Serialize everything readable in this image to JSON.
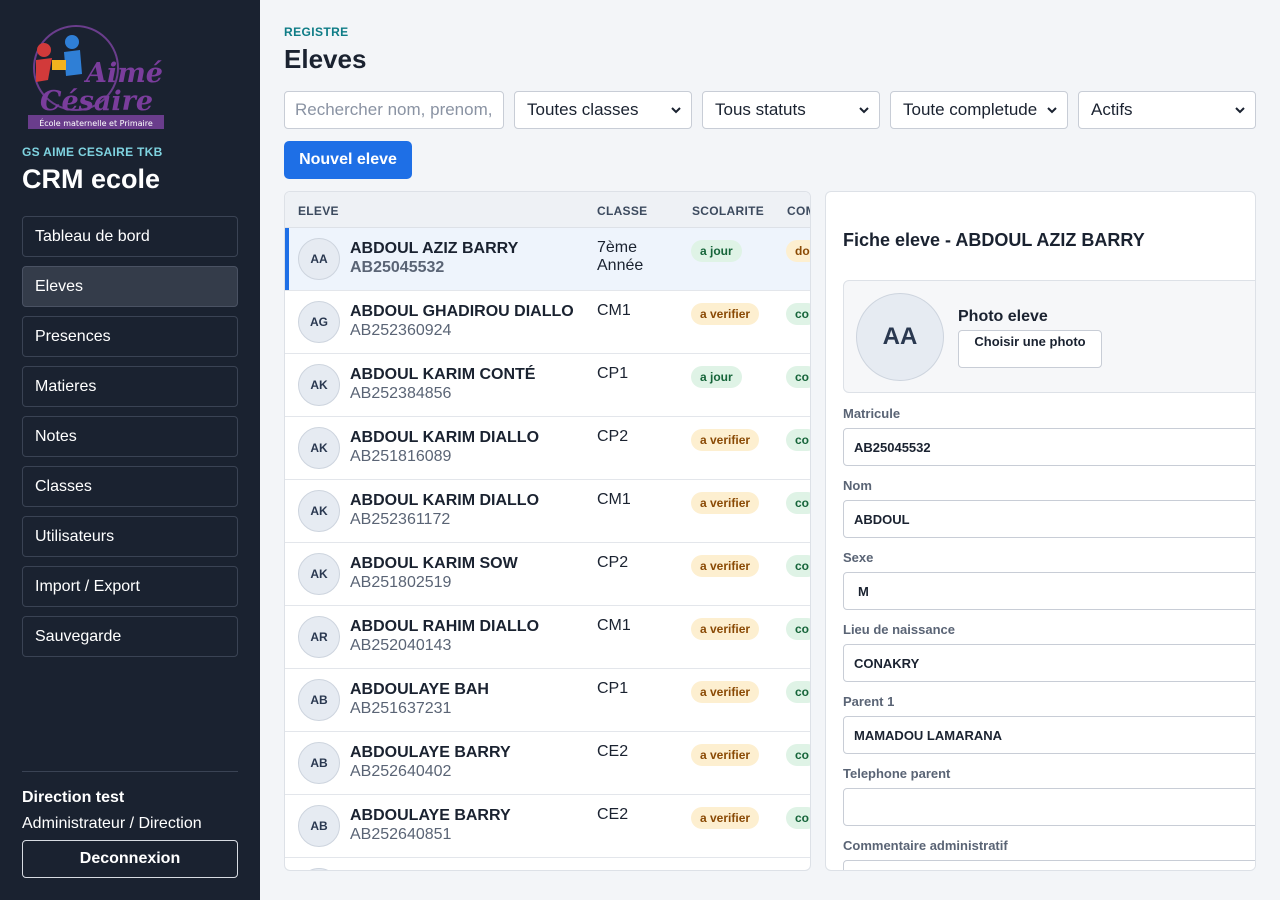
{
  "sidebar": {
    "logo_text": "Aimé Césaire",
    "logo_subtext": "École maternelle et Primaire",
    "school_name": "GS AIME CESAIRE TKB",
    "app_title": "CRM ecole",
    "items": [
      {
        "label": "Tableau de bord"
      },
      {
        "label": "Eleves",
        "active": true
      },
      {
        "label": "Presences"
      },
      {
        "label": "Matieres"
      },
      {
        "label": "Notes"
      },
      {
        "label": "Classes"
      },
      {
        "label": "Utilisateurs"
      },
      {
        "label": "Import / Export"
      },
      {
        "label": "Sauvegarde"
      }
    ],
    "user_name": "Direction test",
    "user_role": "Administrateur / Direction",
    "logout_label": "Deconnexion"
  },
  "header": {
    "eyebrow": "REGISTRE",
    "title": "Eleves"
  },
  "filters": {
    "search_placeholder": "Rechercher nom, prenom, m",
    "class_value": "Toutes classes",
    "status_value": "Tous statuts",
    "completeness_value": "Toute completude",
    "active_value": "Actifs"
  },
  "new_button_label": "Nouvel eleve",
  "table": {
    "columns": [
      "ELEVE",
      "CLASSE",
      "SCOLARITE",
      "COM"
    ],
    "rows": [
      {
        "initials": "AA",
        "name": "ABDOUL AZIZ BARRY",
        "matricule": "AB25045532",
        "class": "7ème Année",
        "status": "a jour",
        "status_kind": "ok",
        "completude": "do",
        "completude_kind": "warn"
      },
      {
        "initials": "AG",
        "name": "ABDOUL GHADIROU DIALLO",
        "matricule": "AB252360924",
        "class": "CM1",
        "status": "a verifier",
        "status_kind": "warn",
        "completude": "co",
        "completude_kind": "ok"
      },
      {
        "initials": "AK",
        "name": "ABDOUL KARIM CONTÉ",
        "matricule": "AB252384856",
        "class": "CP1",
        "status": "a jour",
        "status_kind": "ok",
        "completude": "co",
        "completude_kind": "ok"
      },
      {
        "initials": "AK",
        "name": "ABDOUL KARIM DIALLO",
        "matricule": "AB251816089",
        "class": "CP2",
        "status": "a verifier",
        "status_kind": "warn",
        "completude": "co",
        "completude_kind": "ok"
      },
      {
        "initials": "AK",
        "name": "ABDOUL KARIM DIALLO",
        "matricule": "AB252361172",
        "class": "CM1",
        "status": "a verifier",
        "status_kind": "warn",
        "completude": "co",
        "completude_kind": "ok"
      },
      {
        "initials": "AK",
        "name": "ABDOUL KARIM SOW",
        "matricule": "AB251802519",
        "class": "CP2",
        "status": "a verifier",
        "status_kind": "warn",
        "completude": "co",
        "completude_kind": "ok"
      },
      {
        "initials": "AR",
        "name": "ABDOUL RAHIM DIALLO",
        "matricule": "AB252040143",
        "class": "CM1",
        "status": "a verifier",
        "status_kind": "warn",
        "completude": "co",
        "completude_kind": "ok"
      },
      {
        "initials": "AB",
        "name": "ABDOULAYE BAH",
        "matricule": "AB251637231",
        "class": "CP1",
        "status": "a verifier",
        "status_kind": "warn",
        "completude": "co",
        "completude_kind": "ok"
      },
      {
        "initials": "AB",
        "name": "ABDOULAYE BARRY",
        "matricule": "AB252640402",
        "class": "CE2",
        "status": "a verifier",
        "status_kind": "warn",
        "completude": "co",
        "completude_kind": "ok"
      },
      {
        "initials": "AB",
        "name": "ABDOULAYE BARRY",
        "matricule": "AB252640851",
        "class": "CE2",
        "status": "a verifier",
        "status_kind": "warn",
        "completude": "co",
        "completude_kind": "ok"
      }
    ]
  },
  "detail": {
    "title": "Fiche eleve - ABDOUL AZIZ BARRY",
    "photo_initials": "AA",
    "photo_label": "Photo eleve",
    "photo_button": "Choisir une photo",
    "fields": [
      {
        "label": "Matricule",
        "value": "AB25045532"
      },
      {
        "label": "Nom",
        "value": "ABDOUL"
      },
      {
        "label": "Sexe",
        "value": "M"
      },
      {
        "label": "Lieu de naissance",
        "value": "CONAKRY"
      },
      {
        "label": "Parent 1",
        "value": "MAMADOU LAMARANA"
      },
      {
        "label": "Telephone parent",
        "value": ""
      },
      {
        "label": "Commentaire administratif",
        "value": ""
      }
    ]
  },
  "colors": {
    "sidebar_bg": "#1a2230",
    "accent": "#1e6fe6",
    "teal": "#0e7c86",
    "badge_ok_bg": "#dff3e6",
    "badge_warn_bg": "#fdefd0"
  }
}
